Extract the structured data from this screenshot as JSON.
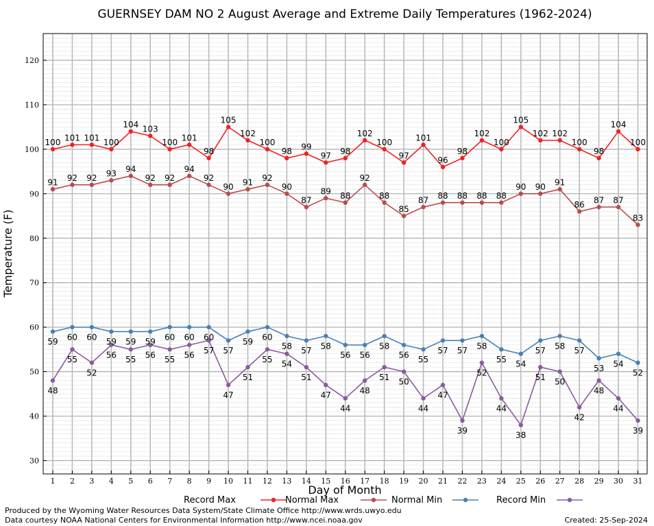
{
  "chart_data": {
    "type": "line",
    "title": "GUERNSEY DAM NO 2 August Average and Extreme Daily Temperatures (1962-2024)",
    "xlabel": "Day of Month",
    "ylabel": "Temperature (F)",
    "ylim": [
      27,
      126
    ],
    "yticks": [
      30,
      40,
      50,
      60,
      70,
      80,
      90,
      100,
      110,
      120
    ],
    "grid": true,
    "legend_position": "bottom",
    "x": [
      1,
      2,
      3,
      4,
      5,
      6,
      7,
      8,
      9,
      10,
      11,
      12,
      13,
      14,
      15,
      16,
      17,
      18,
      19,
      20,
      21,
      22,
      23,
      24,
      25,
      26,
      27,
      28,
      29,
      30,
      31
    ],
    "series": [
      {
        "name": "Record Max",
        "color": "#ee2222",
        "values": [
          100,
          101,
          101,
          100,
          104,
          103,
          100,
          101,
          98,
          105,
          102,
          100,
          98,
          99,
          97,
          98,
          102,
          100,
          97,
          101,
          96,
          98,
          102,
          100,
          105,
          102,
          102,
          100,
          98,
          104,
          100
        ]
      },
      {
        "name": "Normal Max",
        "color": "#b84c4c",
        "values": [
          91,
          92,
          92,
          93,
          94,
          92,
          92,
          94,
          92,
          90,
          91,
          92,
          90,
          87,
          89,
          88,
          92,
          88,
          85,
          87,
          88,
          88,
          88,
          88,
          90,
          90,
          91,
          86,
          87,
          87,
          83
        ]
      },
      {
        "name": "Normal Min",
        "color": "#4a7fb5",
        "values": [
          59,
          60,
          60,
          59,
          59,
          59,
          60,
          60,
          60,
          57,
          59,
          60,
          58,
          57,
          58,
          56,
          56,
          58,
          56,
          55,
          57,
          57,
          58,
          55,
          54,
          57,
          58,
          57,
          53,
          54,
          52
        ]
      },
      {
        "name": "Record Min",
        "color": "#8a5a9e",
        "values": [
          48,
          55,
          52,
          56,
          55,
          56,
          55,
          56,
          57,
          47,
          51,
          55,
          54,
          51,
          47,
          44,
          48,
          51,
          50,
          44,
          47,
          39,
          52,
          44,
          38,
          51,
          50,
          42,
          48,
          44,
          39
        ]
      }
    ]
  },
  "footer": {
    "left_line1": "Produced by the Wyoming Water Resources Data System/State Climate Office http://www.wrds.uwyo.edu",
    "left_line2": "Data courtesy NOAA National Centers for Environmental Information http://www.ncei.noaa.gov",
    "right": "Created:  25-Sep-2024"
  }
}
